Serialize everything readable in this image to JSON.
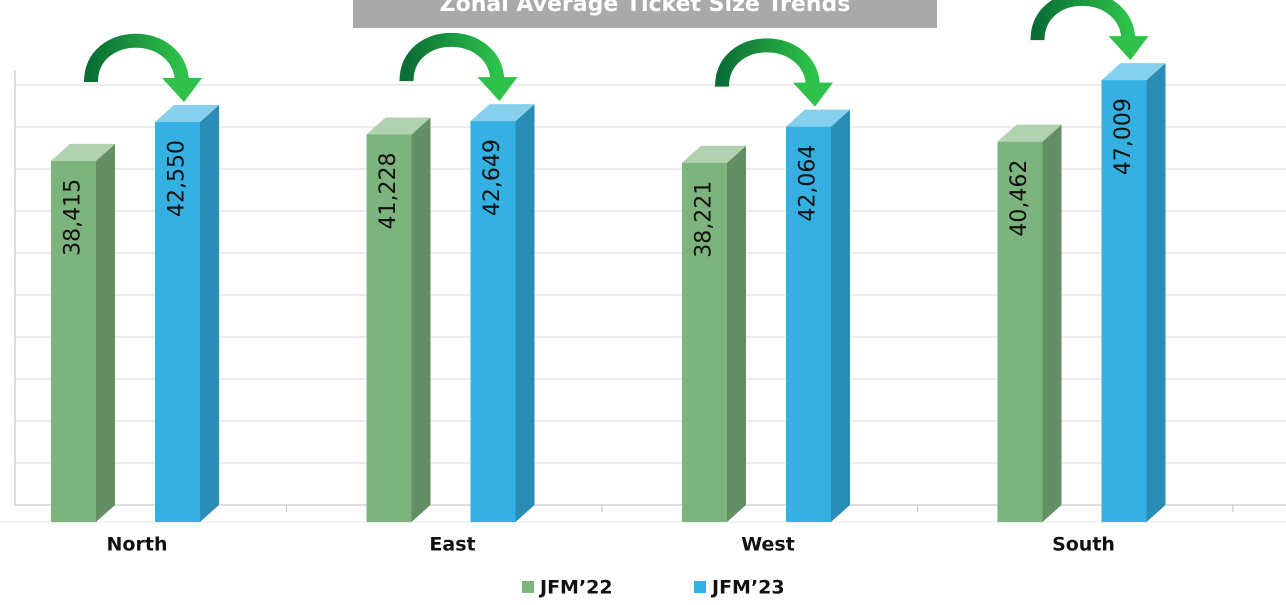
{
  "chart_data": {
    "type": "bar3d",
    "title": "Zonal Average Ticket Size Trends",
    "categories": [
      "North",
      "East",
      "West",
      "South"
    ],
    "series": [
      {
        "name": "JFM’22",
        "color": "#7db37d",
        "values": [
          38415,
          41228,
          38221,
          40462
        ],
        "value_labels": [
          "38,415",
          "41,228",
          "38,221",
          "40,462"
        ]
      },
      {
        "name": "JFM’23",
        "color": "#35b0e2",
        "values": [
          42550,
          42649,
          42064,
          47009
        ],
        "value_labels": [
          "42,550",
          "42,649",
          "42,064",
          "47,009"
        ]
      }
    ],
    "ylim": [
      0,
      50000
    ]
  }
}
